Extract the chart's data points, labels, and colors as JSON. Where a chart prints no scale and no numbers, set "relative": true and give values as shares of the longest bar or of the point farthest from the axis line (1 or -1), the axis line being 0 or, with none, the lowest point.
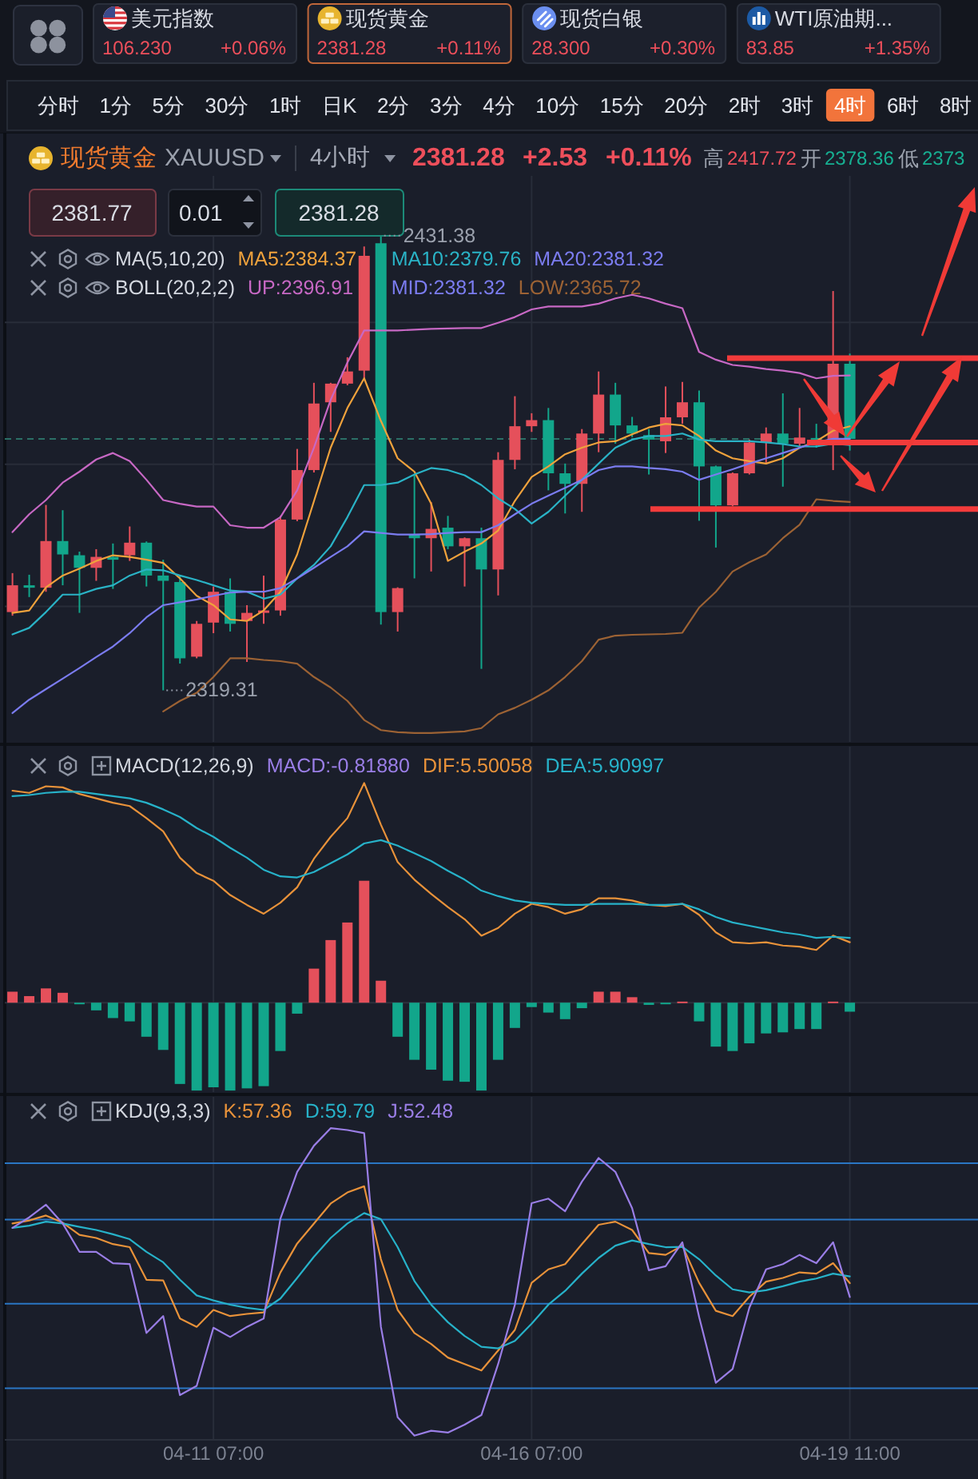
{
  "chart_data": [
    {
      "type": "other",
      "annotations": [
        "美元指数",
        "106.230",
        "+0.06%",
        "现货黄金",
        "2381.28",
        "+0.11%",
        "现货白银",
        "28.300",
        "+0.30%",
        "WTI原油期...",
        "83.85",
        "+1.35%",
        "分时",
        "1分",
        "5分",
        "30分",
        "1时",
        "日K",
        "2分",
        "3分",
        "4分",
        "10分",
        "15分",
        "20分",
        "2时",
        "3时",
        "4时",
        "6时",
        "8时"
      ]
    },
    {
      "type": "candlestick",
      "title": "现货黄金",
      "subtitle": "XAUUSD",
      "categories": [
        null,
        null,
        null,
        null,
        null,
        null,
        null,
        null,
        null,
        null,
        null,
        null,
        null,
        null,
        null,
        null,
        null,
        null,
        null,
        null,
        null,
        null,
        null,
        null,
        null,
        null,
        null,
        null,
        null,
        null,
        null,
        null,
        null,
        null,
        null,
        null,
        null,
        null,
        null,
        null,
        null,
        null,
        null,
        null,
        null,
        null,
        null,
        null,
        null,
        null,
        null,
        null,
        null,
        null,
        null,
        null,
        null,
        null
      ],
      "ohlc": [
        [
          2338.6,
          2348.2,
          2337.7,
          2345.2
        ],
        [
          2345.2,
          2347.8,
          2342.3,
          2344.6
        ],
        [
          2344.6,
          2365.0,
          2343.6,
          2356.1
        ],
        [
          2356.1,
          2363.7,
          2345.2,
          2352.8
        ],
        [
          2352.6,
          2353.5,
          2338.4,
          2349.5
        ],
        [
          2349.5,
          2354.1,
          2346.3,
          2352.2
        ],
        [
          2352.2,
          2355.5,
          2344.3,
          2351.5
        ],
        [
          2352.6,
          2359.7,
          2351.2,
          2355.7
        ],
        [
          2355.7,
          2356.0,
          2344.9,
          2347.6
        ],
        [
          2347.6,
          2351.5,
          2319.31,
          2346.3
        ],
        [
          2346.0,
          2347.6,
          2325.9,
          2327.2
        ],
        [
          2327.6,
          2336.4,
          2327.2,
          2335.7
        ],
        [
          2336.0,
          2344.9,
          2333.4,
          2343.6
        ],
        [
          2343.6,
          2346.9,
          2333.8,
          2335.7
        ],
        [
          2336.4,
          2340.3,
          2326.3,
          2338.4
        ],
        [
          2338.4,
          2347.6,
          2335.7,
          2339.0
        ],
        [
          2339.0,
          2362.3,
          2337.7,
          2361.4
        ],
        [
          2361.4,
          2378.8,
          2361.0,
          2373.6
        ],
        [
          2373.6,
          2395.1,
          2373.0,
          2390.0
        ],
        [
          2390.3,
          2395.1,
          2383.0,
          2394.9
        ],
        [
          2394.9,
          2401.4,
          2394.5,
          2397.9
        ],
        [
          2398.1,
          2428.7,
          2396.2,
          2426.4
        ],
        [
          2429.5,
          2431.38,
          2335.5,
          2338.6
        ],
        [
          2338.6,
          2344.7,
          2333.8,
          2344.5
        ],
        [
          2357.7,
          2372.5,
          2346.9,
          2356.8
        ],
        [
          2356.8,
          2365.7,
          2348.6,
          2359.1
        ],
        [
          2359.4,
          2362.3,
          2354.1,
          2354.8
        ],
        [
          2354.8,
          2357.0,
          2344.9,
          2356.8
        ],
        [
          2356.8,
          2359.4,
          2324.6,
          2349.1
        ],
        [
          2349.1,
          2378.0,
          2342.7,
          2376.1
        ],
        [
          2376.1,
          2391.8,
          2373.8,
          2384.4
        ],
        [
          2384.4,
          2387.6,
          2383.0,
          2385.9
        ],
        [
          2385.9,
          2388.9,
          2368.6,
          2372.8
        ],
        [
          2372.8,
          2375.2,
          2362.9,
          2370.2
        ],
        [
          2370.2,
          2383.7,
          2363.3,
          2382.6
        ],
        [
          2382.6,
          2397.9,
          2378.0,
          2392.2
        ],
        [
          2392.2,
          2395.1,
          2380.1,
          2384.6
        ],
        [
          2384.6,
          2386.7,
          2381.7,
          2382.6
        ],
        [
          2382.2,
          2383.7,
          2372.5,
          2381.1
        ],
        [
          2380.7,
          2394.2,
          2377.8,
          2386.6
        ],
        [
          2386.6,
          2395.3,
          2385.0,
          2390.3
        ],
        [
          2390.3,
          2393.2,
          2361.1,
          2374.5
        ],
        [
          2374.5,
          2374.7,
          2354.5,
          2364.9
        ],
        [
          2364.9,
          2373.0,
          2364.7,
          2372.8
        ],
        [
          2372.8,
          2381.1,
          2372.5,
          2380.4
        ],
        [
          2380.4,
          2384.1,
          2375.4,
          2382.6
        ],
        [
          2382.6,
          2392.5,
          2369.5,
          2380.1
        ],
        [
          2380.1,
          2388.9,
          2379.1,
          2381.6
        ],
        [
          2381.5,
          2385.0,
          2379.1,
          2381.1
        ],
        [
          2380.4,
          2417.72,
          2373.6,
          2399.8
        ],
        [
          2399.8,
          2402.3,
          2378.4,
          2381.28
        ],
        null,
        null,
        null,
        null,
        null,
        null,
        null
      ],
      "colors": [
        "#e5505b",
        "#12a68b",
        "#e5505b",
        "#12a68b",
        "#12a68b",
        "#e5505b",
        "#12a68b",
        "#e5505b",
        "#12a68b",
        "#12a68b",
        "#12a68b",
        "#e5505b",
        "#e5505b",
        "#12a68b",
        "#e5505b",
        "#e5505b",
        "#e5505b",
        "#e5505b",
        "#e5505b",
        "#e5505b",
        "#e5505b",
        "#e5505b",
        "#12a68b",
        "#e5505b",
        "#12a68b",
        "#e5505b",
        "#12a68b",
        "#e5505b",
        "#12a68b",
        "#e5505b",
        "#e5505b",
        "#e5505b",
        "#12a68b",
        "#12a68b",
        "#e5505b",
        "#e5505b",
        "#12a68b",
        "#12a68b",
        "#12a68b",
        "#e5505b",
        "#e5505b",
        "#12a68b",
        "#12a68b",
        "#e5505b",
        "#e5505b",
        "#e5505b",
        "#12a68b",
        "#e5505b",
        "#12a68b",
        "#e5505b",
        "#12a68b",
        null,
        null,
        null,
        null,
        null,
        null,
        null
      ],
      "series": [
        {
          "name": "MA5:2384.37",
          "type": "line",
          "color": "#f0a23c",
          "values": [
            2338.4,
            2339.0,
            2344.7,
            2347.6,
            2349.3,
            2351.2,
            2352.6,
            2352.2,
            2351.5,
            2350.7,
            2346.9,
            2342.6,
            2340.3,
            2336.8,
            2336.4,
            2339.0,
            2343.6,
            2352.8,
            2365.9,
            2379.1,
            2388.9,
            2396.2,
            2385.7,
            2376.5,
            2373.2,
            2365.3,
            2351.2,
            2353.5,
            2355.5,
            2358.7,
            2366.0,
            2371.9,
            2374.5,
            2377.5,
            2379.1,
            2380.4,
            2380.7,
            2382.4,
            2384.1,
            2385.0,
            2384.6,
            2382.0,
            2378.4,
            2376.5,
            2375.8,
            2375.2,
            2376.5,
            2379.1,
            2380.7,
            2383.3,
            2384.37,
            null,
            null,
            null,
            null,
            null,
            null,
            null
          ]
        },
        {
          "name": "MA10:2379.76",
          "type": "line",
          "color": "#2ab3c6",
          "values": [
            2333.1,
            2334.7,
            2338.6,
            2342.9,
            2342.9,
            2344.3,
            2345.2,
            2347.6,
            2349.1,
            2348.9,
            2347.6,
            2346.5,
            2345.2,
            2343.9,
            2343.6,
            2341.9,
            2342.9,
            2346.9,
            2350.2,
            2354.8,
            2362.0,
            2369.9,
            2369.9,
            2370.5,
            2372.5,
            2374.1,
            2373.6,
            2372.3,
            2369.9,
            2366.6,
            2364.0,
            2360.4,
            2363.3,
            2367.3,
            2371.2,
            2375.2,
            2379.1,
            2381.1,
            2382.0,
            2382.0,
            2382.6,
            2381.1,
            2380.7,
            2380.7,
            2380.7,
            2380.4,
            2380.0,
            2379.4,
            2379.4,
            2380.1,
            2379.76,
            null,
            null,
            null,
            null,
            null,
            null,
            null
          ]
        },
        {
          "name": "MA20:2381.32",
          "type": "line",
          "color": "#7b7cf0",
          "values": [
            2313.7,
            2317.0,
            2319.6,
            2322.2,
            2324.8,
            2327.5,
            2330.1,
            2333.4,
            2337.3,
            2340.3,
            2341.0,
            2341.7,
            2342.6,
            2343.4,
            2343.6,
            2343.6,
            2344.5,
            2346.9,
            2349.5,
            2352.2,
            2354.8,
            2358.5,
            2358.1,
            2357.7,
            2357.7,
            2357.8,
            2358.1,
            2358.3,
            2358.3,
            2360.0,
            2362.7,
            2365.3,
            2367.3,
            2369.2,
            2371.2,
            2373.6,
            2374.5,
            2374.5,
            2374.1,
            2373.8,
            2373.2,
            2371.2,
            2372.5,
            2373.8,
            2375.2,
            2376.5,
            2377.8,
            2379.1,
            2380.4,
            2381.3,
            2381.32,
            null,
            null,
            null,
            null,
            null,
            null,
            null
          ]
        },
        {
          "name": "UP:2396.91",
          "type": "line",
          "color": "#c768c4",
          "values": [
            2358.3,
            2362.7,
            2366.2,
            2370.5,
            2373.2,
            2376.2,
            2377.8,
            2375.8,
            2371.2,
            2366.2,
            2365.3,
            2364.6,
            2364.6,
            2360.0,
            2359.4,
            2359.4,
            2362.0,
            2368.6,
            2379.1,
            2390.9,
            2400.1,
            2408.0,
            2408.0,
            2408.0,
            2408.2,
            2408.4,
            2408.5,
            2408.6,
            2408.6,
            2409.9,
            2411.3,
            2413.2,
            2413.9,
            2413.9,
            2413.9,
            2414.6,
            2415.9,
            2416.8,
            2415.9,
            2414.6,
            2413.5,
            2402.7,
            2400.8,
            2399.5,
            2399.1,
            2398.5,
            2398.1,
            2397.5,
            2396.2,
            2396.8,
            2396.91,
            null,
            null,
            null,
            null,
            null,
            null,
            null
          ]
        },
        {
          "name": "LOW:2365.72",
          "type": "line",
          "color": "#9c6234",
          "values": [
            null,
            null,
            null,
            null,
            null,
            null,
            null,
            null,
            null,
            2314.1,
            2316.7,
            2318.7,
            2322.6,
            2327.2,
            2327.2,
            2326.8,
            2326.5,
            2325.9,
            2322.6,
            2320.0,
            2316.7,
            2312.0,
            2309.5,
            2309.0,
            2308.8,
            2308.8,
            2309.0,
            2309.2,
            2310.0,
            2313.4,
            2315.0,
            2317.0,
            2319.3,
            2322.6,
            2326.5,
            2331.8,
            2332.8,
            2333.0,
            2333.1,
            2333.2,
            2333.5,
            2339.7,
            2343.6,
            2348.6,
            2350.9,
            2352.8,
            2356.8,
            2360.1,
            2366.4,
            2366.0,
            2365.72,
            null,
            null,
            null,
            null,
            null,
            null,
            null
          ]
        }
      ],
      "ylim": [
        2306.6,
        2446.1
      ],
      "yticks": [
        {
          "value": 2410,
          "label": null
        },
        {
          "value": 2375,
          "label": null
        },
        {
          "value": 2340,
          "label": null
        }
      ],
      "grid": true,
      "tick_labels": false,
      "legend": "top left",
      "ref_lines": [
        {
          "axis": "y",
          "value": 2381.28,
          "color": "#2b6f66",
          "line_style": "dashed"
        },
        {
          "axis": "y",
          "value": 2401.2,
          "color": "#f23b3b"
        },
        {
          "axis": "y",
          "value": 2380.4,
          "color": "#f23b3b"
        },
        {
          "axis": "y",
          "value": 2364.0,
          "color": "#f23b3b"
        }
      ],
      "annotations": [
        "4小时",
        "2381.28",
        "+2.53",
        "+0.11%",
        "高",
        "2417.72",
        "开",
        "2378.36",
        "低",
        "2373",
        "2381.77",
        "0.01",
        "2381.28",
        "MA(5,10,20)",
        "BOLL(20,2,2)",
        "MID:2381.32",
        "2431.38",
        "2319.31"
      ]
    },
    {
      "type": "bar",
      "title": "MACD(12,26,9)",
      "relative": true,
      "categories": [
        null,
        null,
        null,
        null,
        null,
        null,
        null,
        null,
        null,
        null,
        null,
        null,
        null,
        null,
        null,
        null,
        null,
        null,
        null,
        null,
        null,
        null,
        null,
        null,
        null,
        null,
        null,
        null,
        null,
        null,
        null,
        null,
        null,
        null,
        null,
        null,
        null,
        null,
        null,
        null,
        null,
        null,
        null,
        null,
        null,
        null,
        null,
        null,
        null,
        null,
        null,
        null,
        null,
        null,
        null,
        null,
        null,
        null
      ],
      "series": [
        {
          "type": "bar",
          "values": [
            0.05,
            0.03,
            0.065,
            0.045,
            -0.005,
            -0.035,
            -0.07,
            -0.085,
            -0.155,
            -0.215,
            -0.37,
            -0.4,
            -0.385,
            -0.4,
            -0.39,
            -0.38,
            -0.22,
            -0.05,
            0.155,
            0.285,
            0.365,
            0.555,
            0.1,
            -0.155,
            -0.26,
            -0.305,
            -0.355,
            -0.36,
            -0.4,
            -0.26,
            -0.115,
            -0.02,
            -0.045,
            -0.075,
            -0.025,
            0.05,
            0.05,
            0.025,
            -0.01,
            -0.005,
            0.005,
            -0.085,
            -0.2,
            -0.22,
            -0.185,
            -0.14,
            -0.135,
            -0.12,
            -0.12,
            0.005,
            -0.041,
            null,
            null,
            null,
            null,
            null,
            null,
            null
          ],
          "colors": [
            "#e5505b",
            "#e5505b",
            "#e5505b",
            "#e5505b",
            "#12a68b",
            "#12a68b",
            "#12a68b",
            "#12a68b",
            "#12a68b",
            "#12a68b",
            "#12a68b",
            "#12a68b",
            "#12a68b",
            "#12a68b",
            "#12a68b",
            "#12a68b",
            "#12a68b",
            "#12a68b",
            "#e5505b",
            "#e5505b",
            "#e5505b",
            "#e5505b",
            "#e5505b",
            "#12a68b",
            "#12a68b",
            "#12a68b",
            "#12a68b",
            "#12a68b",
            "#12a68b",
            "#12a68b",
            "#12a68b",
            "#12a68b",
            "#12a68b",
            "#12a68b",
            "#12a68b",
            "#e5505b",
            "#e5505b",
            "#e5505b",
            "#12a68b",
            "#12a68b",
            "#e5505b",
            "#12a68b",
            "#12a68b",
            "#12a68b",
            "#12a68b",
            "#12a68b",
            "#12a68b",
            "#12a68b",
            "#12a68b",
            "#e5505b",
            "#12a68b",
            null,
            null,
            null,
            null,
            null,
            null,
            null
          ]
        },
        {
          "name": "DIF:5.50058",
          "type": "line",
          "color": "#e8923a",
          "values": [
            0.965,
            0.955,
            0.985,
            0.98,
            0.95,
            0.93,
            0.91,
            0.895,
            0.84,
            0.78,
            0.66,
            0.59,
            0.555,
            0.49,
            0.445,
            0.405,
            0.455,
            0.525,
            0.655,
            0.755,
            0.84,
            1,
            0.81,
            0.64,
            0.56,
            0.495,
            0.435,
            0.38,
            0.305,
            0.34,
            0.405,
            0.45,
            0.435,
            0.405,
            0.425,
            0.475,
            0.475,
            0.465,
            0.445,
            0.44,
            0.45,
            0.4,
            0.32,
            0.275,
            0.27,
            0.275,
            0.26,
            0.255,
            0.24,
            0.305,
            0.275,
            null,
            null,
            null,
            null,
            null,
            null,
            null
          ]
        },
        {
          "name": "DEA:5.90997",
          "type": "line",
          "color": "#27b2c9",
          "values": [
            0.94,
            0.945,
            0.955,
            0.96,
            0.96,
            0.95,
            0.94,
            0.93,
            0.91,
            0.88,
            0.845,
            0.795,
            0.755,
            0.705,
            0.66,
            0.605,
            0.575,
            0.57,
            0.595,
            0.635,
            0.675,
            0.725,
            0.74,
            0.715,
            0.68,
            0.645,
            0.6,
            0.56,
            0.51,
            0.485,
            0.465,
            0.455,
            0.45,
            0.445,
            0.445,
            0.45,
            0.45,
            0.45,
            0.445,
            0.445,
            0.45,
            0.425,
            0.39,
            0.365,
            0.35,
            0.335,
            0.32,
            0.31,
            0.295,
            0.3,
            0.295,
            null,
            null,
            null,
            null,
            null,
            null,
            null
          ]
        }
      ],
      "grid": "x",
      "tick_labels": false,
      "legend": "top",
      "annotations": [
        "MACD:-0.81880"
      ]
    },
    {
      "type": "line",
      "title": "KDJ(9,3,3)",
      "relative": true,
      "categories": [
        null,
        null,
        null,
        null,
        null,
        null,
        null,
        null,
        null,
        null,
        null,
        null,
        "04-11 07:00",
        null,
        null,
        null,
        null,
        null,
        null,
        null,
        null,
        null,
        null,
        null,
        null,
        null,
        null,
        null,
        null,
        null,
        null,
        "04-16 07:00",
        null,
        null,
        null,
        null,
        null,
        null,
        null,
        null,
        null,
        null,
        null,
        null,
        null,
        null,
        null,
        null,
        null,
        null,
        "04-19 11:00",
        null,
        null,
        null,
        null,
        null,
        null,
        null
      ],
      "series": [
        {
          "name": "K:57.36",
          "color": "#e8923a",
          "values": [
            0.69,
            0.7,
            0.716,
            0.693,
            0.653,
            0.643,
            0.623,
            0.613,
            0.507,
            0.505,
            0.381,
            0.354,
            0.409,
            0.389,
            0.396,
            0.401,
            0.531,
            0.625,
            0.69,
            0.755,
            0.791,
            0.811,
            0.574,
            0.409,
            0.334,
            0.298,
            0.254,
            0.233,
            0.212,
            0.277,
            0.344,
            0.497,
            0.541,
            0.558,
            0.623,
            0.686,
            0.696,
            0.669,
            0.594,
            0.588,
            0.618,
            0.497,
            0.406,
            0.389,
            0.452,
            0.501,
            0.513,
            0.531,
            0.527,
            0.561,
            0.496,
            null,
            null,
            null,
            null,
            null,
            null,
            null
          ]
        },
        {
          "name": "D:59.79",
          "color": "#27b2c9",
          "values": [
            0.676,
            0.683,
            0.696,
            0.69,
            0.679,
            0.669,
            0.655,
            0.639,
            0.598,
            0.564,
            0.507,
            0.456,
            0.44,
            0.426,
            0.416,
            0.409,
            0.446,
            0.513,
            0.582,
            0.643,
            0.69,
            0.724,
            0.704,
            0.613,
            0.503,
            0.426,
            0.369,
            0.324,
            0.289,
            0.284,
            0.308,
            0.364,
            0.426,
            0.471,
            0.527,
            0.578,
            0.618,
            0.635,
            0.623,
            0.613,
            0.614,
            0.574,
            0.521,
            0.476,
            0.466,
            0.473,
            0.486,
            0.501,
            0.511,
            0.527,
            0.518,
            null,
            null,
            null,
            null,
            null,
            null,
            null
          ]
        },
        {
          "name": "J:52.48",
          "color": "#9a7ee6",
          "values": [
            0.676,
            0.71,
            0.751,
            0.69,
            0.598,
            0.598,
            0.561,
            0.558,
            0.334,
            0.389,
            0.132,
            0.162,
            0.351,
            0.321,
            0.354,
            0.381,
            0.706,
            0.858,
            0.943,
            1,
            0.994,
            0.984,
            0.354,
            0.06,
            0,
            0.016,
            0.01,
            0.036,
            0.067,
            0.233,
            0.426,
            0.756,
            0.771,
            0.73,
            0.826,
            0.903,
            0.858,
            0.74,
            0.538,
            0.551,
            0.629,
            0.386,
            0.172,
            0.217,
            0.416,
            0.541,
            0.558,
            0.588,
            0.561,
            0.629,
            0.451,
            null,
            null,
            null,
            null,
            null,
            null,
            null
          ]
        }
      ],
      "grid": "x",
      "tick_labels": "x",
      "legend": "top left",
      "ref_lines": [
        {
          "axis": "y",
          "value": 0.886,
          "color": "#2a76c4"
        },
        {
          "axis": "y",
          "value": 0.703,
          "color": "#2a76c4"
        },
        {
          "axis": "y",
          "value": 0.429,
          "color": "#2a76c4"
        },
        {
          "axis": "y",
          "value": 0.154,
          "color": "#2a76c4"
        }
      ]
    }
  ]
}
